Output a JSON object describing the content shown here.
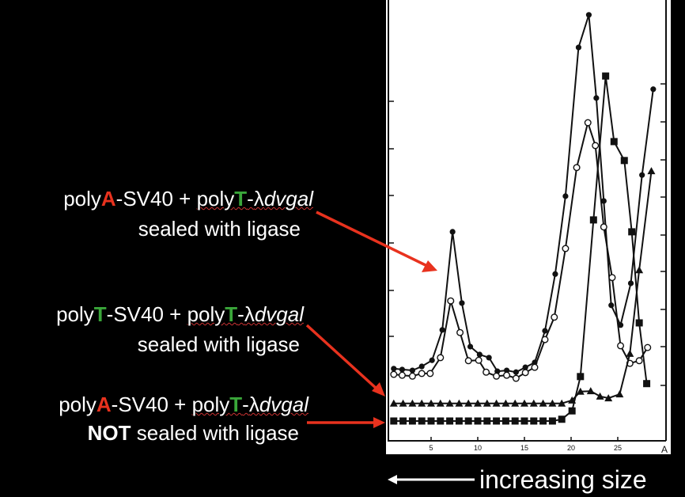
{
  "labels": [
    {
      "prefix": "poly",
      "base1": "A",
      "mid": "-SV40 + ",
      "poly2": "poly",
      "base2": "T",
      "dash": "-",
      "lambda": "λ",
      "italic": "dvgal",
      "line2_bold": "",
      "line2": "sealed with ligase",
      "base1_color": "red"
    },
    {
      "prefix": "poly",
      "base1": "T",
      "mid": "-SV40 + ",
      "poly2": "poly",
      "base2": "T",
      "dash": "-",
      "lambda": "λ",
      "italic": "dvgal",
      "line2_bold": "",
      "line2": "sealed with ligase",
      "base1_color": "green"
    },
    {
      "prefix": "poly",
      "base1": "A",
      "mid": "-SV40 + ",
      "poly2": "poly",
      "base2": "T",
      "dash": "-",
      "lambda": "λ",
      "italic": "dvgal",
      "line2_bold": "NOT",
      "line2": " sealed with ligase",
      "base1_color": "red"
    }
  ],
  "bottom_caption": "increasing size",
  "colors": {
    "arrow": "#e8321e",
    "red": "#e8321e",
    "green": "#3aa63a"
  },
  "chart_data": {
    "type": "line",
    "title": "",
    "xlabel": "",
    "ylabel": "",
    "xlim": [
      0,
      30.5
    ],
    "ylim": [
      0,
      100
    ],
    "x_ticks": [
      5,
      10,
      15,
      20,
      25
    ],
    "x_tick_labels": [
      "5",
      "10",
      "15",
      "20",
      "25"
    ],
    "panel_label": "A",
    "grid": false,
    "series": [
      {
        "name": "polyA-SV40 + polyT-λdvgal sealed with ligase (filled circles)",
        "marker": "filled-circle",
        "x": [
          1,
          1.9,
          3,
          4,
          5.1,
          6.2,
          7.3,
          8.3,
          9.2,
          10.2,
          11.2,
          12.1,
          13.1,
          14.1,
          15.1,
          16.1,
          17.2,
          18.3,
          19.4,
          20.8,
          21.9,
          22.7,
          23.5,
          24.3,
          25.3,
          26.4,
          27.6,
          28.8
        ],
        "y": [
          16.4,
          16.2,
          16,
          16.9,
          18.3,
          25.2,
          47.5,
          31.3,
          21.4,
          19.6,
          18.9,
          15.8,
          16,
          15.6,
          16.7,
          17.8,
          25,
          37.9,
          55.6,
          89.4,
          96.8,
          77.9,
          54.5,
          30.8,
          26.3,
          35.8,
          60.4,
          79.9
        ]
      },
      {
        "name": "polyA-SV40 + polyT-λdvgal sealed with ligase (open circles)",
        "marker": "open-circle",
        "x": [
          1,
          1.9,
          3,
          4,
          4.9,
          6,
          7.1,
          8.1,
          9,
          10.1,
          10.9,
          12,
          13.1,
          14.1,
          15.1,
          16.1,
          17.2,
          18.2,
          19.4,
          20.6,
          21.8,
          22.6,
          23.5,
          24.4,
          25.3,
          26.3,
          27.3,
          28.2
        ],
        "y": [
          15.1,
          14.9,
          14.7,
          15.3,
          15.3,
          18.9,
          31.8,
          24.6,
          18.2,
          18.3,
          15.6,
          14.7,
          14.9,
          14.2,
          15.5,
          16.7,
          23,
          28.1,
          43.7,
          62.1,
          72.3,
          67.1,
          48.6,
          37.1,
          21.6,
          17.6,
          18.2,
          21.2
        ]
      },
      {
        "name": "polyT-SV40 + polyT-λdvgal sealed with ligase",
        "marker": "triangle",
        "x": [
          1,
          2,
          3,
          4,
          5,
          6,
          7,
          8,
          9,
          10,
          11,
          12,
          13,
          14,
          15,
          16,
          17,
          18,
          19,
          20.1,
          21,
          22.1,
          23.1,
          24,
          25.2,
          26.3,
          27.3,
          28.6
        ],
        "y": [
          8.5,
          8.5,
          8.5,
          8.5,
          8.5,
          8.5,
          8.5,
          8.5,
          8.5,
          8.5,
          8.5,
          8.5,
          8.5,
          8.5,
          8.5,
          8.5,
          8.5,
          8.5,
          8.5,
          9.2,
          11.2,
          11.3,
          10.1,
          9.7,
          10.6,
          19.8,
          38.8,
          61.3
        ]
      },
      {
        "name": "polyA-SV40 + polyT-λdvgal NOT sealed with ligase",
        "marker": "square",
        "x": [
          1,
          2,
          3,
          4,
          5,
          6,
          7,
          8,
          9,
          10,
          11,
          12,
          13,
          14,
          15,
          16,
          17,
          18,
          19,
          20.1,
          21,
          22.4,
          23.7,
          24.6,
          25.7,
          26.5,
          27.3,
          28.1
        ],
        "y": [
          4.5,
          4.5,
          4.5,
          4.5,
          4.5,
          4.5,
          4.5,
          4.5,
          4.5,
          4.5,
          4.5,
          4.5,
          4.5,
          4.5,
          4.5,
          4.5,
          4.5,
          4.5,
          4.9,
          6.8,
          14.6,
          50.2,
          82.9,
          68,
          63.7,
          47.5,
          26.8,
          13
        ]
      }
    ]
  }
}
